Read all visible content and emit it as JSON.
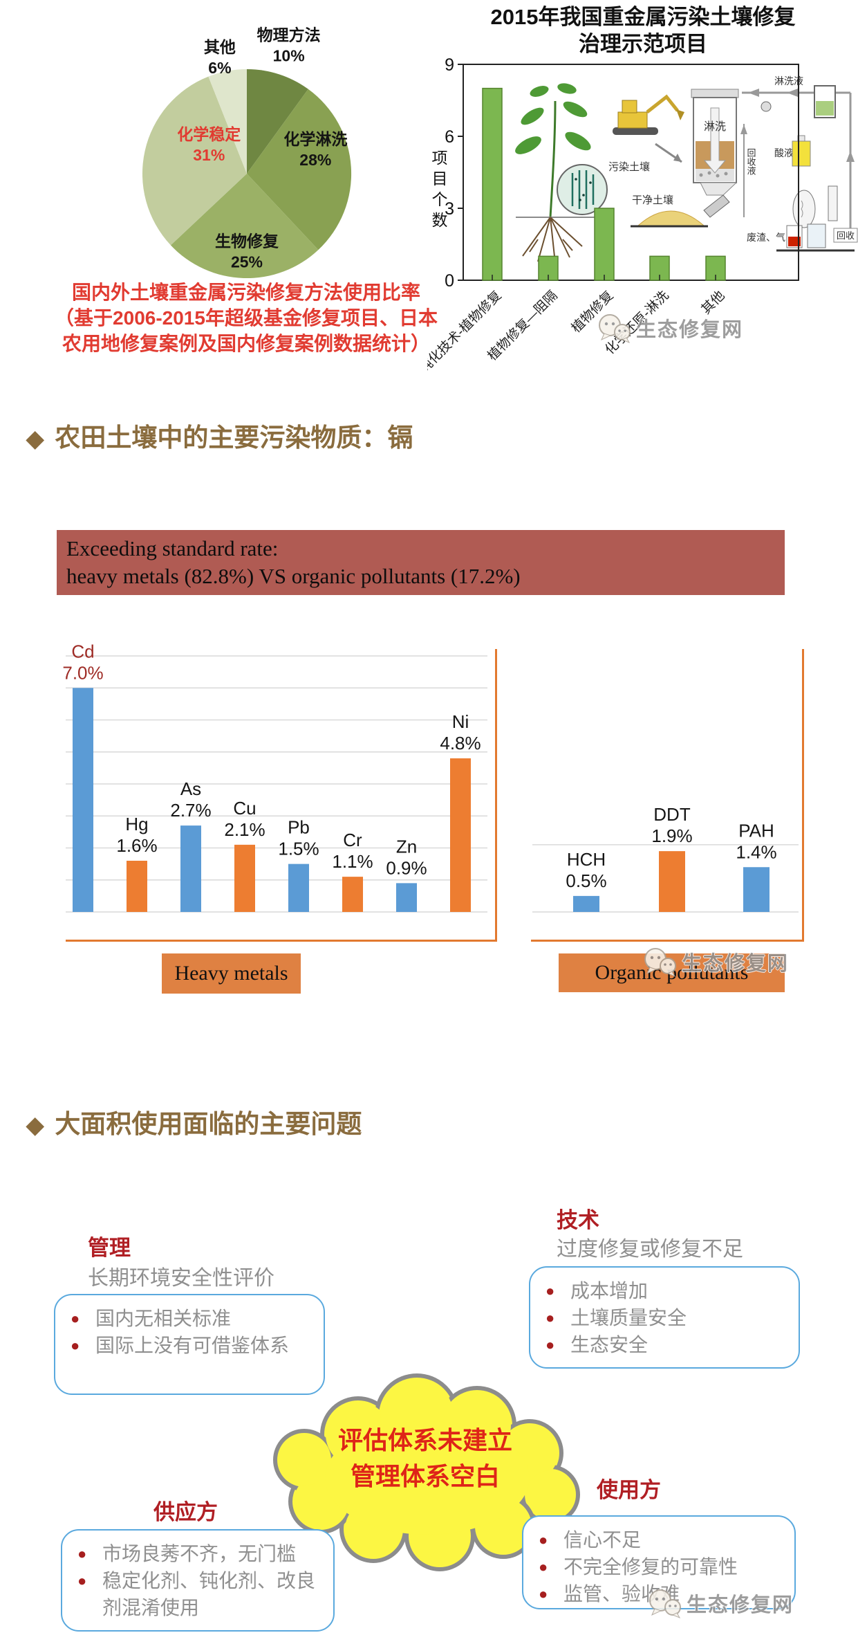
{
  "watermark": {
    "text": "生态修复网"
  },
  "pie_section": {
    "caption_line1": "国内外土壤重金属污染修复方法使用比率",
    "caption_line2": "（基于2006-2015年超级基金修复项目、日本",
    "caption_line3": "农用地修复案例及国内修复案例数据统计）"
  },
  "projects_section": {
    "title_line1": "2015年我国重金属污染土壤修复",
    "title_line2": "治理示范项目",
    "illustration_labels": {
      "linxiye": "淋洗液",
      "wuran_turang": "污染土壤",
      "linxi": "淋洗",
      "huishouye": "回收液",
      "suanye": "酸液",
      "ganjing_turang": "干净土壤",
      "feizha_qi": "废渣、气",
      "huishou": "回收"
    }
  },
  "section1": {
    "marker": "◆",
    "title": "农田土壤中的主要污染物质：镉"
  },
  "banner": {
    "line1": "Exceeding standard rate:",
    "line2": "heavy metals (82.8%) VS organic pollutants (17.2%)"
  },
  "pollution_section": {
    "heavy_label": "Heavy metals",
    "organic_label": "Organic pollutants"
  },
  "section2": {
    "marker": "◆",
    "title": "大面积使用面临的主要问题"
  },
  "problems": {
    "management": {
      "title": "管理",
      "subtitle": "长期环境安全性评价",
      "items": [
        "国内无相关标准",
        "国际上没有可借鉴体系"
      ]
    },
    "technology": {
      "title": "技术",
      "subtitle": "过度修复或修复不足",
      "items": [
        "成本增加",
        "土壤质量安全",
        "生态安全"
      ]
    },
    "supplier": {
      "title": "供应方",
      "items": [
        "市场良莠不齐，无门槛",
        "稳定化剂、钝化剂、改良剂混淆使用"
      ]
    },
    "user": {
      "title": "使用方",
      "items": [
        "信心不足",
        "不完全修复的可靠性",
        "监管、验收难"
      ]
    },
    "cloud_line1": "评估体系未建立",
    "cloud_line2": "管理体系空白"
  },
  "chart_data": [
    {
      "id": "remediation-methods-pie",
      "type": "pie",
      "categories": [
        "物理方法",
        "化学淋洗",
        "生物修复",
        "化学稳定",
        "其他"
      ],
      "values": [
        10,
        28,
        25,
        31,
        6
      ],
      "display_values": [
        "10%",
        "28%",
        "25%",
        "31%",
        "6%"
      ],
      "colors": [
        "#6f8742",
        "#89a152",
        "#9bb166",
        "#c2cd9e",
        "#dfe6cc"
      ],
      "label_colors": [
        "#141414",
        "#141414",
        "#141414",
        "#e13b31",
        "#141414"
      ],
      "label_angle": [
        18,
        70,
        180,
        308,
        347
      ],
      "label_r": [
        1.3,
        0.7,
        0.74,
        0.46,
        1.15
      ],
      "legend_position": "none"
    },
    {
      "id": "demo-projects-2015",
      "type": "bar",
      "title": "2015年我国重金属污染土壤修复治理示范项目",
      "ylabel": "项目个数",
      "categories": [
        "钝化技术-植物修复",
        "植物修复—阻隔",
        "植物修复",
        "化学还原-淋洗",
        "其他"
      ],
      "values": [
        8,
        1,
        3,
        1,
        1
      ],
      "yticks": [
        0,
        3,
        6,
        9
      ],
      "ylim": [
        0,
        9
      ],
      "bar_color": "#7cb750",
      "bar_border": "#55842e",
      "grid": false
    },
    {
      "id": "heavy-metals-exceeding",
      "type": "bar",
      "group_label": "Heavy metals",
      "categories": [
        "Cd",
        "Hg",
        "As",
        "Cu",
        "Pb",
        "Cr",
        "Zn",
        "Ni"
      ],
      "values": [
        7.0,
        1.6,
        2.7,
        2.1,
        1.5,
        1.1,
        0.9,
        4.8
      ],
      "display_values": [
        "7.0%",
        "1.6%",
        "2.7%",
        "2.1%",
        "1.5%",
        "1.1%",
        "0.9%",
        "4.8%"
      ],
      "colors": [
        "#5b9bd5",
        "#ed7d31",
        "#5b9bd5",
        "#ed7d31",
        "#5b9bd5",
        "#ed7d31",
        "#5b9bd5",
        "#ed7d31"
      ],
      "label_colors": [
        "#9e2b25",
        "#161616",
        "#161616",
        "#161616",
        "#161616",
        "#161616",
        "#161616",
        "#161616"
      ],
      "ylim": [
        0,
        8
      ],
      "gridlines": [
        0,
        1,
        2,
        3,
        4,
        5,
        6,
        7,
        8
      ],
      "grid": true
    },
    {
      "id": "organic-pollutants-exceeding",
      "type": "bar",
      "group_label": "Organic pollutants",
      "categories": [
        "HCH",
        "DDT",
        "PAH"
      ],
      "values": [
        0.5,
        1.9,
        1.4
      ],
      "display_values": [
        "0.5%",
        "1.9%",
        "1.4%"
      ],
      "colors": [
        "#5b9bd5",
        "#ed7d31",
        "#5b9bd5"
      ],
      "label_colors": [
        "#161616",
        "#161616",
        "#161616"
      ],
      "ylim": [
        0,
        8
      ],
      "gridlines": [
        0,
        2.1
      ],
      "grid": true
    }
  ]
}
